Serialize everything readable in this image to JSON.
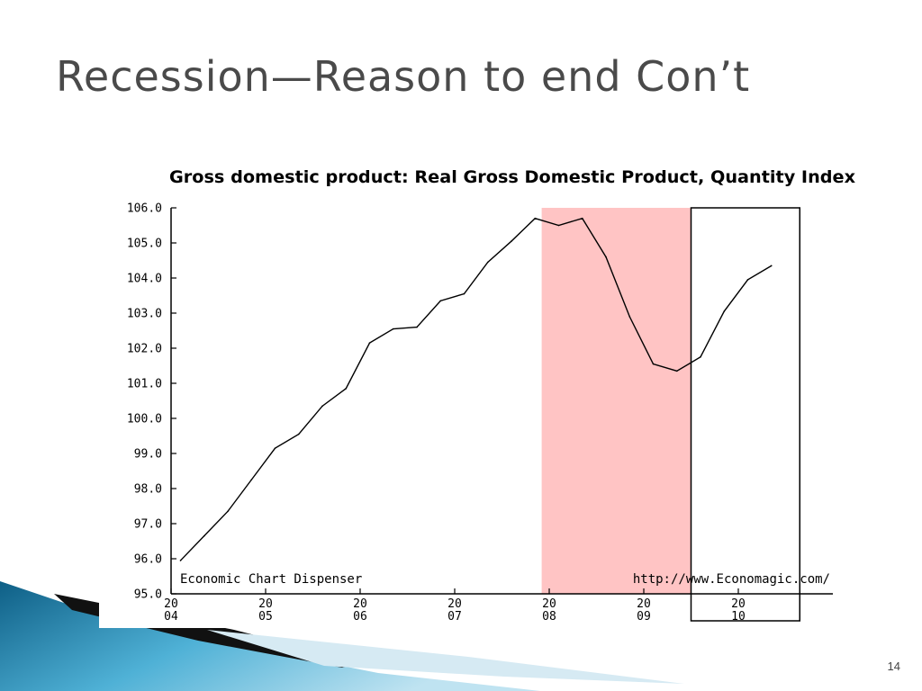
{
  "slide": {
    "title": "Recession—Reason to end Con’t",
    "page_number": "14"
  },
  "colors": {
    "title": "#4a4a4a",
    "recession_shade": "#ffc4c4",
    "line": "#000000",
    "decor_blue": "#1f86b3"
  },
  "chart_data": {
    "type": "line",
    "title": "Gross domestic product: Real Gross Domestic Product, Quantity Index",
    "footer_left": "Economic Chart Dispenser",
    "footer_right": "http://www.Economagic.com/",
    "ylim": [
      95.0,
      106.0
    ],
    "yticks": [
      "106.0",
      "105.0",
      "104.0",
      "103.0",
      "102.0",
      "101.0",
      "100.0",
      "99.0",
      "98.0",
      "97.0",
      "96.0",
      "95.0"
    ],
    "xlim": [
      2004.0,
      2011.0
    ],
    "xticks": [
      {
        "x": 2004,
        "top": "20",
        "bottom": "04"
      },
      {
        "x": 2005,
        "top": "20",
        "bottom": "05"
      },
      {
        "x": 2006,
        "top": "20",
        "bottom": "06"
      },
      {
        "x": 2007,
        "top": "20",
        "bottom": "07"
      },
      {
        "x": 2008,
        "top": "20",
        "bottom": "08"
      },
      {
        "x": 2009,
        "top": "20",
        "bottom": "09"
      },
      {
        "x": 2010,
        "top": "20",
        "bottom": "10"
      }
    ],
    "recession": {
      "start": 2007.92,
      "end": 2009.5
    },
    "highlight_box": {
      "start": 2009.5,
      "end": 2010.65
    },
    "series": [
      {
        "x": [
          2004.1,
          2004.35,
          2004.6,
          2004.85,
          2005.1,
          2005.35,
          2005.6,
          2005.85,
          2006.1,
          2006.35,
          2006.6,
          2006.85,
          2007.1,
          2007.35,
          2007.6,
          2007.85,
          2008.1,
          2008.35,
          2008.6,
          2008.85,
          2009.1,
          2009.35,
          2009.6,
          2009.85,
          2010.1,
          2010.35
        ],
        "y": [
          95.95,
          96.65,
          97.35,
          98.25,
          99.15,
          99.55,
          100.35,
          100.85,
          102.15,
          102.55,
          102.6,
          103.35,
          103.55,
          104.45,
          105.05,
          105.7,
          105.5,
          105.7,
          104.6,
          102.9,
          101.55,
          101.35,
          101.75,
          103.05,
          103.95,
          104.35
        ]
      }
    ]
  }
}
